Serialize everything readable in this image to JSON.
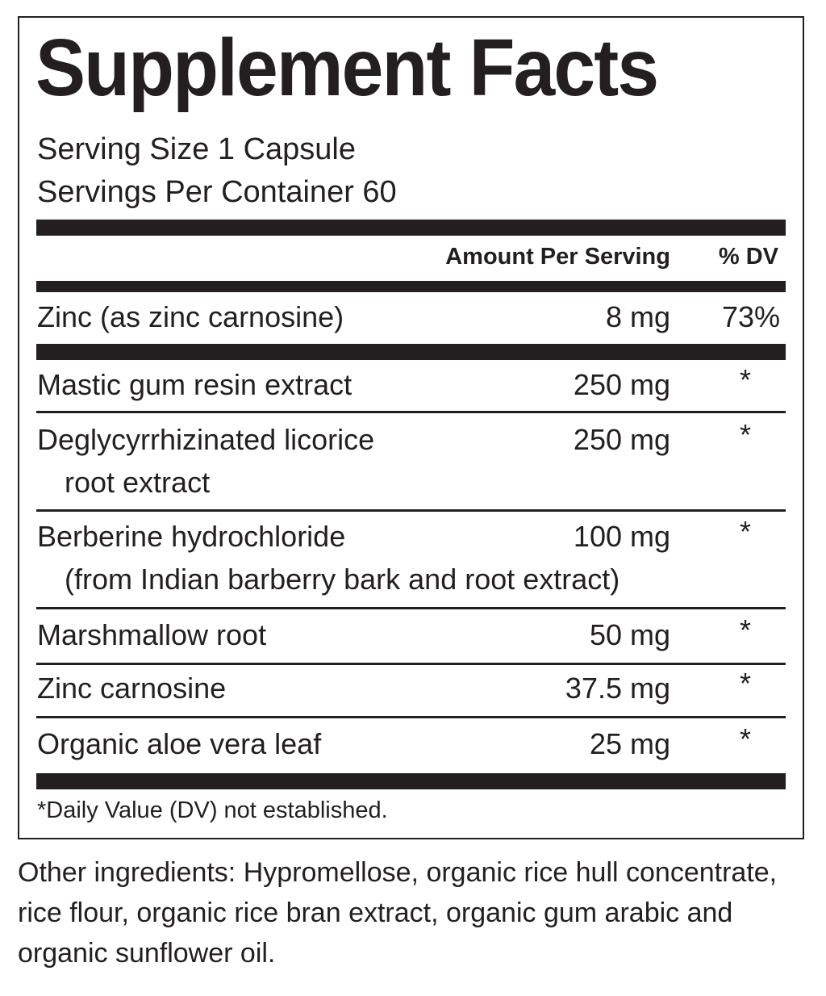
{
  "label": {
    "title": "Supplement Facts",
    "serving_size": "Serving Size 1 Capsule",
    "servings_per_container": "Servings Per Container 60",
    "header": {
      "amount": "Amount Per Serving",
      "dv": "% DV"
    },
    "rows": [
      {
        "name": "Zinc (as zinc carnosine)",
        "amount": "8 mg",
        "dv": "73%"
      },
      {
        "name": "Mastic gum resin extract",
        "amount": "250 mg",
        "dv": "*"
      },
      {
        "name": "Deglycyrrhizinated licorice",
        "subname": "root extract",
        "amount": "250 mg",
        "dv": "*"
      },
      {
        "name": "Berberine hydrochloride",
        "subname": "(from Indian barberry bark and root extract)",
        "amount": "100 mg",
        "dv": "*"
      },
      {
        "name": "Marshmallow root",
        "amount": "50 mg",
        "dv": "*"
      },
      {
        "name": "Zinc carnosine",
        "amount": "37.5 mg",
        "dv": "*"
      },
      {
        "name": "Organic aloe vera leaf",
        "amount": "25 mg",
        "dv": "*"
      }
    ],
    "footnote": "*Daily Value (DV) not established."
  },
  "other_ingredients": "Other ingredients: Hypromellose, organic rice hull concentrate, rice flour, organic rice bran extract, organic gum arabic and organic sunflower oil."
}
